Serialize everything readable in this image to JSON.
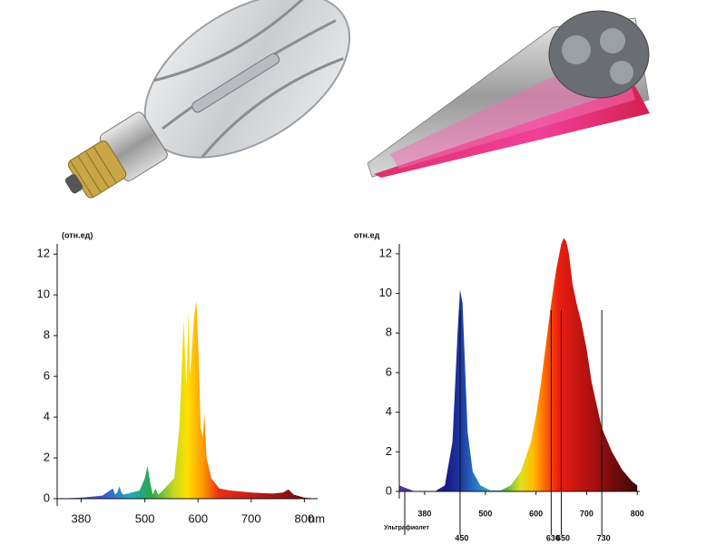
{
  "chart_data": [
    {
      "type": "area",
      "y_label": "(отн.ед)",
      "x_unit": "nm",
      "x": [
        335,
        380,
        420,
        440,
        444,
        448,
        452,
        456,
        460,
        490,
        500,
        505,
        510,
        515,
        520,
        525,
        530,
        555,
        565,
        573,
        578,
        582,
        585,
        590,
        593,
        597,
        601,
        605,
        609,
        612,
        616,
        625,
        640,
        660,
        700,
        740,
        760,
        770,
        780,
        800,
        825
      ],
      "values": [
        0,
        0.05,
        0.15,
        0.5,
        0.2,
        0.3,
        0.6,
        0.3,
        0.2,
        0.4,
        1.0,
        1.6,
        0.8,
        0.2,
        0.5,
        0.2,
        0.3,
        1.0,
        3.5,
        8.8,
        5.5,
        9.2,
        6.0,
        8.0,
        9.0,
        9.7,
        7.0,
        3.5,
        3.0,
        4.2,
        2.0,
        1.0,
        0.5,
        0.4,
        0.3,
        0.25,
        0.3,
        0.45,
        0.2,
        0.05,
        0
      ],
      "xlim": [
        335,
        825
      ],
      "ylim": [
        0,
        12.5
      ],
      "xticks": [
        380,
        500,
        600,
        700,
        800
      ],
      "yticks": [
        0,
        2,
        4,
        6,
        8,
        10,
        12
      ]
    },
    {
      "type": "area",
      "y_label": "отн.ед",
      "annotation": "Ультрафиолет",
      "x": [
        330,
        340,
        360,
        400,
        420,
        435,
        445,
        450,
        455,
        465,
        475,
        490,
        510,
        530,
        550,
        570,
        590,
        600,
        610,
        620,
        630,
        640,
        650,
        655,
        660,
        665,
        672,
        680,
        690,
        700,
        710,
        730,
        750,
        770,
        790,
        800
      ],
      "values": [
        0.3,
        0.2,
        0,
        0,
        0.3,
        2.5,
        8.0,
        10.2,
        9.5,
        3.0,
        1.0,
        0.3,
        0.05,
        0.05,
        0.3,
        1.0,
        2.5,
        3.8,
        5.5,
        7.5,
        9.5,
        11.2,
        12.5,
        12.8,
        12.6,
        12.0,
        10.5,
        9.5,
        8.5,
        7.2,
        5.5,
        3.2,
        2.0,
        1.1,
        0.5,
        0.3
      ],
      "xlim": [
        330,
        805
      ],
      "ylim": [
        0,
        12.5
      ],
      "xticks": [
        380,
        500,
        600,
        700,
        800
      ],
      "yticks": [
        0,
        2,
        4,
        6,
        8,
        10,
        12
      ],
      "markers": [
        450,
        630,
        650,
        730
      ]
    }
  ]
}
